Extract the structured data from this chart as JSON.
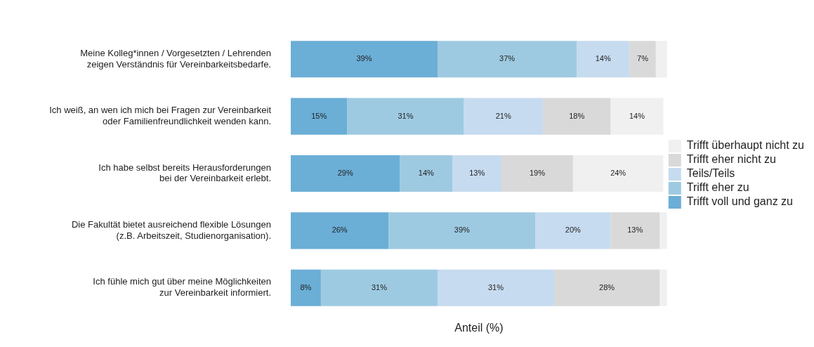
{
  "chart_data": {
    "type": "bar",
    "orientation": "horizontal",
    "stacked": true,
    "xlabel": "Anteil (%)",
    "xlim": [
      0,
      100
    ],
    "tick_labels": "y",
    "grid": false,
    "legend": "right",
    "categories": [
      "Meine Kolleg*innen / Vorgesetzten / Lehrenden\nzeigen Verständnis für Vereinbarkeitsbedarfe.",
      "Ich weiß, an wen ich mich bei Fragen zur Vereinbarkeit\noder Familienfreundlichkeit wenden kann.",
      "Ich habe selbst bereits Herausforderungen\nbei der Vereinbarkeit erlebt.",
      "Die Fakultät bietet ausreichend flexible Lösungen\n(z.B. Arbeitszeit, Studienorganisation).",
      "Ich fühle mich gut über meine Möglichkeiten\nzur Vereinbarkeit informiert."
    ],
    "series": [
      {
        "name": "Trifft voll und ganz zu",
        "color": "#6baed6",
        "values": [
          39,
          15,
          29,
          26,
          8
        ],
        "value_labels": [
          "39%",
          "15%",
          "29%",
          "26%",
          "8%"
        ]
      },
      {
        "name": "Trifft eher zu",
        "color": "#9ecae1",
        "values": [
          37,
          31,
          14,
          39,
          31
        ],
        "value_labels": [
          "37%",
          "31%",
          "14%",
          "39%",
          "31%"
        ]
      },
      {
        "name": "Teils/Teils",
        "color": "#c6dbef",
        "values": [
          14,
          21,
          13,
          20,
          31
        ],
        "value_labels": [
          "14%",
          "21%",
          "13%",
          "20%",
          "31%"
        ]
      },
      {
        "name": "Trifft eher nicht zu",
        "color": "#d9d9d9",
        "values": [
          7,
          18,
          19,
          13,
          28
        ],
        "value_labels": [
          "7%",
          "18%",
          "19%",
          "13%",
          "28%"
        ]
      },
      {
        "name": "Trifft überhaupt nicht zu",
        "color": "#f0f0f0",
        "values": [
          3,
          14,
          24,
          2,
          2
        ],
        "value_labels": [
          null,
          "14%",
          "24%",
          null,
          null
        ]
      }
    ]
  }
}
